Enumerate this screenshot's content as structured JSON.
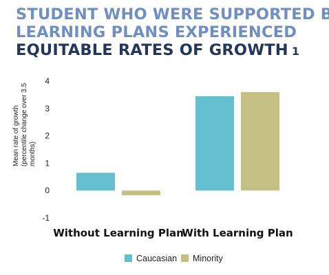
{
  "header": {
    "line1": "STUDENT WHO WERE SUPPORTED BY",
    "line2": "LEARNING PLANS EXPERIENCED",
    "line3": "EQUITABLE RATES OF GROWTH",
    "footnote": "1"
  },
  "colors": {
    "title_accent": "#6f8fc2",
    "title_dark": "#243659",
    "caucasian": "#64c0d0",
    "minority": "#c4c084"
  },
  "chart_data": {
    "type": "bar",
    "title": "",
    "ylabel_lines": [
      "Mean rate of growth",
      "(percentile change over 3.5",
      "months)"
    ],
    "xlabel": "",
    "categories": [
      "Without Learning Plan",
      "With Learning Plan"
    ],
    "series": [
      {
        "name": "Caucasian",
        "values": [
          0.65,
          3.45
        ]
      },
      {
        "name": "Minority",
        "values": [
          -0.17,
          3.6
        ]
      }
    ],
    "ylim": [
      -1,
      4
    ],
    "yticks": [
      "-1",
      "0",
      "1",
      "2",
      "3",
      "4"
    ],
    "grid": false,
    "legend": "bottom"
  }
}
